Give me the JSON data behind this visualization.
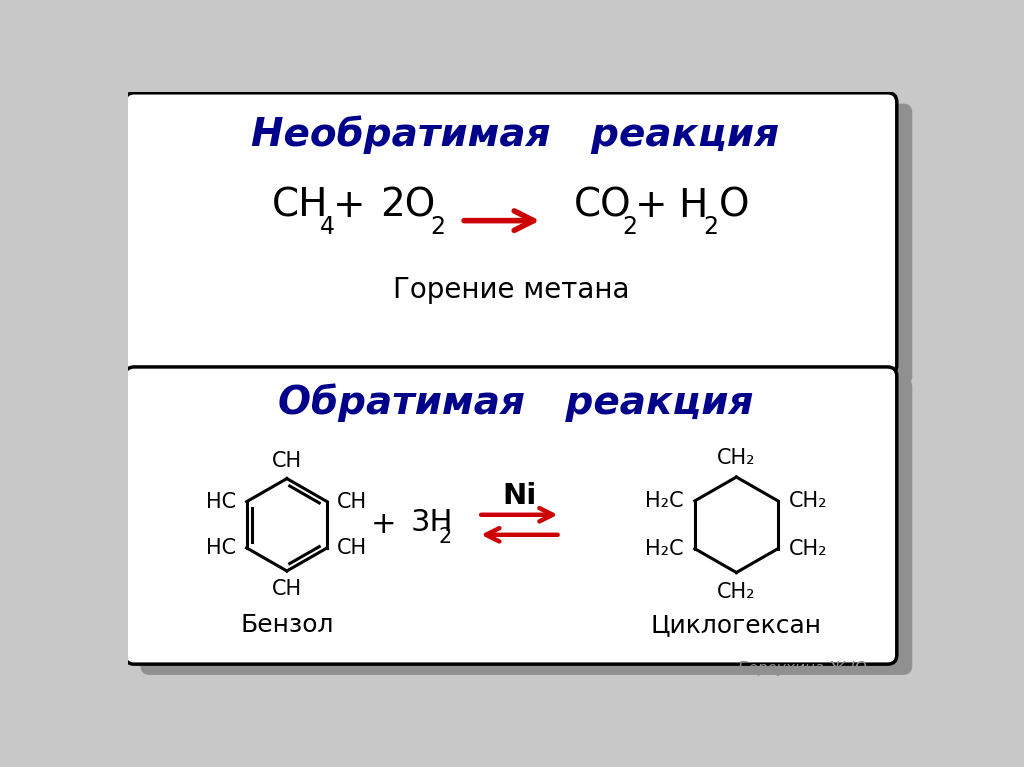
{
  "bg_color": "#c8c8c8",
  "box1_color": "#ffffff",
  "box2_color": "#ffffff",
  "title1": "Необратимая   реакция",
  "title2": "Обратимая   реакция",
  "title_color": "#00008B",
  "text_color": "#000000",
  "arrow_color": "#cc0000",
  "subtitle1": "Горение метана",
  "label1": "Бензол",
  "label2": "Циклогексан",
  "author": "Бороухина Ж.Ю"
}
